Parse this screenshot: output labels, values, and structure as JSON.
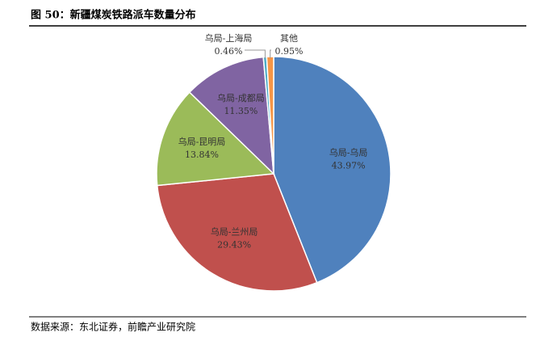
{
  "chart_data": {
    "type": "pie",
    "title": "图 50：新疆煤炭铁路派车数量分布",
    "categories": [
      "乌局-乌局",
      "乌局-兰州局",
      "乌局-昆明局",
      "乌局-成都局",
      "乌局-上海局",
      "其他"
    ],
    "values": [
      43.97,
      29.43,
      13.84,
      11.35,
      0.46,
      0.95
    ],
    "value_labels": [
      "43.97%",
      "29.43%",
      "13.84%",
      "11.35%",
      "0.46%",
      "0.95%"
    ],
    "colors": [
      "#4f81bd",
      "#c0504d",
      "#9bbb59",
      "#8064a2",
      "#4bacc6",
      "#f79646"
    ],
    "source": "数据来源：东北证券，前瞻产业研究院"
  }
}
